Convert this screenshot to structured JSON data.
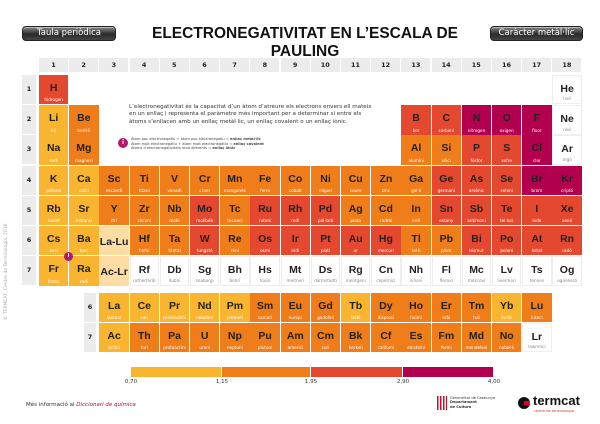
{
  "header": {
    "left_button": "Taula periòdica",
    "title": "ELECTRONEGATIVITAT EN L’ESCALA DE PAULING",
    "right_button": "Caràcter metàl·lic"
  },
  "groups": [
    "1",
    "2",
    "3",
    "4",
    "5",
    "6",
    "7",
    "8",
    "9",
    "10",
    "11",
    "12",
    "13",
    "14",
    "15",
    "16",
    "17",
    "18"
  ],
  "periods": [
    "1",
    "2",
    "3",
    "4",
    "5",
    "6",
    "7"
  ],
  "fblock_labels": [
    "6",
    "7"
  ],
  "colors": {
    "y": "#F9B52F",
    "o": "#EE7D1A",
    "r": "#E4492F",
    "m": "#B3004E",
    "p": "#FDDDA4",
    "w": "#FFFFFF"
  },
  "info": {
    "text": "L’electronegativitat és la capacitat d’un àtom d’atreure els electrons envers ell mateix en un enllaç i representa el paràmetre més important per a determinar si entre els àtoms s’enllacen amb un enllaç metàl·lic, un enllaç covalent o un enllaç iònic.",
    "rules": [
      {
        "text": "Àtom poc electronegatiu + àtom poc electronegatiu = ",
        "bold": "enllaç metàl·lic"
      },
      {
        "text": "Àtom molt electronegatiu + àtom molt electronegatiu = ",
        "bold": "enllaç covalent"
      },
      {
        "text": "Àtoms d’electronegativitats molt diferents = ",
        "bold": "enllaç iònic"
      }
    ],
    "icon": "i"
  },
  "elements": [
    [
      "H",
      "hidrogen",
      1,
      1,
      "r"
    ],
    [
      "He",
      "heli",
      18,
      1,
      "w"
    ],
    [
      "Li",
      "liti",
      1,
      2,
      "y"
    ],
    [
      "Be",
      "beril·li",
      2,
      2,
      "o"
    ],
    [
      "B",
      "bor",
      13,
      2,
      "r"
    ],
    [
      "C",
      "carboni",
      14,
      2,
      "r"
    ],
    [
      "N",
      "nitrogen",
      15,
      2,
      "m"
    ],
    [
      "O",
      "oxigen",
      16,
      2,
      "m"
    ],
    [
      "F",
      "fluor",
      17,
      2,
      "m"
    ],
    [
      "Ne",
      "neó",
      18,
      2,
      "w"
    ],
    [
      "Na",
      "sodi",
      1,
      3,
      "y"
    ],
    [
      "Mg",
      "magnesi",
      2,
      3,
      "o"
    ],
    [
      "Al",
      "alumini",
      13,
      3,
      "o"
    ],
    [
      "Si",
      "silici",
      14,
      3,
      "o"
    ],
    [
      "P",
      "fòsfor",
      15,
      3,
      "r"
    ],
    [
      "S",
      "sofre",
      16,
      3,
      "r"
    ],
    [
      "Cl",
      "clor",
      17,
      3,
      "m"
    ],
    [
      "Ar",
      "argó",
      18,
      3,
      "w"
    ],
    [
      "K",
      "potassi",
      1,
      4,
      "y"
    ],
    [
      "Ca",
      "calci",
      2,
      4,
      "y"
    ],
    [
      "Sc",
      "escandi",
      3,
      4,
      "o"
    ],
    [
      "Ti",
      "titani",
      4,
      4,
      "o"
    ],
    [
      "V",
      "vanadi",
      5,
      4,
      "o"
    ],
    [
      "Cr",
      "crom",
      6,
      4,
      "o"
    ],
    [
      "Mn",
      "manganès",
      7,
      4,
      "o"
    ],
    [
      "Fe",
      "ferro",
      8,
      4,
      "o"
    ],
    [
      "Co",
      "cobalt",
      9,
      4,
      "o"
    ],
    [
      "Ni",
      "níquel",
      10,
      4,
      "o"
    ],
    [
      "Cu",
      "coure",
      11,
      4,
      "o"
    ],
    [
      "Zn",
      "zinc",
      12,
      4,
      "o"
    ],
    [
      "Ga",
      "gal·li",
      13,
      4,
      "o"
    ],
    [
      "Ge",
      "germani",
      14,
      4,
      "r"
    ],
    [
      "As",
      "arsènic",
      15,
      4,
      "r"
    ],
    [
      "Se",
      "seleni",
      16,
      4,
      "r"
    ],
    [
      "Br",
      "brom",
      17,
      4,
      "m"
    ],
    [
      "Kr",
      "criptó",
      18,
      4,
      "m"
    ],
    [
      "Rb",
      "rubidi",
      1,
      5,
      "y"
    ],
    [
      "Sr",
      "estronci",
      2,
      5,
      "y"
    ],
    [
      "Y",
      "itri",
      3,
      5,
      "o"
    ],
    [
      "Zr",
      "zirconi",
      4,
      5,
      "o"
    ],
    [
      "Nb",
      "niobi",
      5,
      5,
      "o"
    ],
    [
      "Mo",
      "molibdè",
      6,
      5,
      "r"
    ],
    [
      "Tc",
      "tecneci",
      7,
      5,
      "o"
    ],
    [
      "Ru",
      "ruteni",
      8,
      5,
      "r"
    ],
    [
      "Rh",
      "rodi",
      9,
      5,
      "r"
    ],
    [
      "Pd",
      "pal·ladi",
      10,
      5,
      "r"
    ],
    [
      "Ag",
      "plata",
      11,
      5,
      "o"
    ],
    [
      "Cd",
      "cadmi",
      12,
      5,
      "o"
    ],
    [
      "In",
      "indi",
      13,
      5,
      "o"
    ],
    [
      "Sn",
      "estany",
      14,
      5,
      "r"
    ],
    [
      "Sb",
      "antimoni",
      15,
      5,
      "r"
    ],
    [
      "Te",
      "tel·luri",
      16,
      5,
      "r"
    ],
    [
      "I",
      "iode",
      17,
      5,
      "r"
    ],
    [
      "Xe",
      "xenó",
      18,
      5,
      "r"
    ],
    [
      "Cs",
      "cesi",
      1,
      6,
      "y"
    ],
    [
      "Ba",
      "bari",
      2,
      6,
      "y"
    ],
    [
      "La-Lu",
      "",
      3,
      6,
      "p"
    ],
    [
      "Hf",
      "hafni",
      4,
      6,
      "o"
    ],
    [
      "Ta",
      "tàntal",
      5,
      6,
      "o"
    ],
    [
      "W",
      "tungstè",
      6,
      6,
      "r"
    ],
    [
      "Re",
      "reni",
      7,
      6,
      "o"
    ],
    [
      "Os",
      "osmi",
      8,
      6,
      "r"
    ],
    [
      "Ir",
      "iridi",
      9,
      6,
      "r"
    ],
    [
      "Pt",
      "platí",
      10,
      6,
      "r"
    ],
    [
      "Au",
      "or",
      11,
      6,
      "r"
    ],
    [
      "Hg",
      "mercuri",
      12,
      6,
      "r"
    ],
    [
      "Tl",
      "tal·li",
      13,
      6,
      "o"
    ],
    [
      "Pb",
      "plom",
      14,
      6,
      "o"
    ],
    [
      "Bi",
      "bismut",
      15,
      6,
      "r"
    ],
    [
      "Po",
      "poloni",
      16,
      6,
      "r"
    ],
    [
      "At",
      "àstat",
      17,
      6,
      "r"
    ],
    [
      "Rn",
      "radó",
      18,
      6,
      "r"
    ],
    [
      "Fr",
      "franci",
      1,
      7,
      "y"
    ],
    [
      "Ra",
      "radi",
      2,
      7,
      "y"
    ],
    [
      "Ac-Lr",
      "",
      3,
      7,
      "p"
    ],
    [
      "Rf",
      "rutherfordi",
      4,
      7,
      "w"
    ],
    [
      "Db",
      "dubni",
      5,
      7,
      "w"
    ],
    [
      "Sg",
      "seaborgi",
      6,
      7,
      "w"
    ],
    [
      "Bh",
      "bohri",
      7,
      7,
      "w"
    ],
    [
      "Hs",
      "hassi",
      8,
      7,
      "w"
    ],
    [
      "Mt",
      "meitneri",
      9,
      7,
      "w"
    ],
    [
      "Ds",
      "darmstadti",
      10,
      7,
      "w"
    ],
    [
      "Rg",
      "roentgeni",
      11,
      7,
      "w"
    ],
    [
      "Cn",
      "copernici",
      12,
      7,
      "w"
    ],
    [
      "Nh",
      "nihoni",
      13,
      7,
      "w"
    ],
    [
      "Fl",
      "flerovi",
      14,
      7,
      "w"
    ],
    [
      "Mc",
      "moscovi",
      15,
      7,
      "w"
    ],
    [
      "Lv",
      "livermori",
      16,
      7,
      "w"
    ],
    [
      "Ts",
      "tennes",
      17,
      7,
      "w"
    ],
    [
      "Og",
      "oganessó",
      18,
      7,
      "w"
    ]
  ],
  "lanthanides": [
    [
      "La",
      "lantani",
      "y"
    ],
    [
      "Ce",
      "ceri",
      "y"
    ],
    [
      "Pr",
      "praseodimi",
      "y"
    ],
    [
      "Nd",
      "neodimi",
      "y"
    ],
    [
      "Pm",
      "prometi",
      "y"
    ],
    [
      "Sm",
      "samari",
      "o"
    ],
    [
      "Eu",
      "europi",
      "o"
    ],
    [
      "Gd",
      "gadolini",
      "o"
    ],
    [
      "Tb",
      "terbi",
      "y"
    ],
    [
      "Dy",
      "disprosi",
      "o"
    ],
    [
      "Ho",
      "holmi",
      "o"
    ],
    [
      "Er",
      "erbi",
      "o"
    ],
    [
      "Tm",
      "tuli",
      "o"
    ],
    [
      "Yb",
      "iterbi",
      "y"
    ],
    [
      "Lu",
      "luteci",
      "o"
    ]
  ],
  "actinides": [
    [
      "Ac",
      "actini",
      "y"
    ],
    [
      "Th",
      "tori",
      "o"
    ],
    [
      "Pa",
      "protoactini",
      "o"
    ],
    [
      "U",
      "urani",
      "o"
    ],
    [
      "Np",
      "neptuni",
      "o"
    ],
    [
      "Pu",
      "plutoni",
      "o"
    ],
    [
      "Am",
      "americi",
      "o"
    ],
    [
      "Cm",
      "curi",
      "o"
    ],
    [
      "Bk",
      "berkeli",
      "o"
    ],
    [
      "Cf",
      "californi",
      "o"
    ],
    [
      "Es",
      "einsteini",
      "o"
    ],
    [
      "Fm",
      "fermi",
      "o"
    ],
    [
      "Md",
      "mendelevi",
      "o"
    ],
    [
      "No",
      "nobel·li",
      "o"
    ],
    [
      "Lr",
      "lawrenci",
      "w"
    ]
  ],
  "scale": {
    "labels": [
      "0,70",
      "1,15",
      "1,95",
      "2,90",
      "4,00"
    ],
    "bounds": [
      0.7,
      1.15,
      1.95,
      2.9,
      4.0
    ],
    "colors": [
      "#F9B52F",
      "#EE7D1A",
      "#E4492F",
      "#B3004E"
    ]
  },
  "footer": {
    "more_prefix": "Més informació al ",
    "more_link": "Diccionari de química",
    "gencat_line1": "Generalitat de Catalunya",
    "gencat_line2": "Departament",
    "gencat_line3": "de Cultura",
    "termcat": "termcat",
    "termcat_sub": "centre de terminologia",
    "side": "© TERMCAT, Centre de Terminologia, 2016"
  }
}
